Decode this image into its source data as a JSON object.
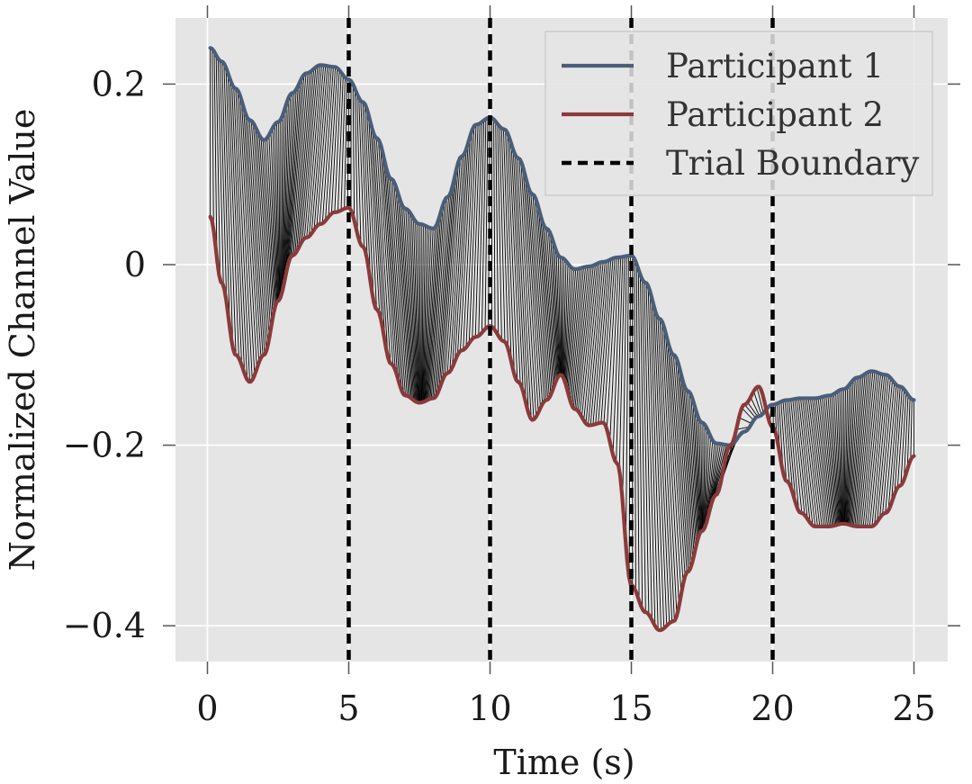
{
  "chart_data": {
    "type": "line",
    "title": "",
    "xlabel": "Time (s)",
    "ylabel": "Normalized Channel Value",
    "xlim": [
      -1.1,
      26.2
    ],
    "ylim": [
      -0.44,
      0.27
    ],
    "xticks": [
      0,
      5,
      10,
      15,
      20,
      25
    ],
    "xtick_labels": [
      "0",
      "5",
      "10",
      "15",
      "20",
      "25"
    ],
    "yticks": [
      -0.4,
      -0.2,
      0,
      0.2
    ],
    "ytick_labels": [
      "−0.4",
      "−0.2",
      "0",
      "0.2"
    ],
    "grid": true,
    "background": "#e5e5e5",
    "legend_position": "top-right",
    "series": [
      {
        "name": "Participant 1",
        "color": "#4a5e78",
        "x": [
          0.1,
          0.5,
          1.0,
          1.5,
          2.0,
          2.5,
          3.0,
          3.5,
          4.0,
          4.5,
          5.0,
          5.5,
          6.0,
          6.5,
          7.0,
          7.5,
          8.0,
          8.5,
          9.0,
          9.5,
          10.0,
          10.5,
          11.0,
          11.5,
          12.0,
          12.5,
          13.0,
          13.5,
          14.0,
          14.5,
          15.0,
          15.5,
          16.0,
          16.5,
          17.0,
          17.5,
          18.0,
          18.5,
          19.0,
          19.5,
          20.0,
          20.5,
          21.0,
          21.5,
          22.0,
          22.5,
          23.0,
          23.5,
          24.0,
          24.5,
          25.0
        ],
        "y": [
          0.24,
          0.225,
          0.195,
          0.16,
          0.138,
          0.158,
          0.19,
          0.212,
          0.221,
          0.219,
          0.205,
          0.18,
          0.14,
          0.095,
          0.062,
          0.045,
          0.04,
          0.075,
          0.12,
          0.155,
          0.163,
          0.15,
          0.118,
          0.078,
          0.04,
          0.008,
          -0.005,
          -0.002,
          0.003,
          0.008,
          0.01,
          -0.02,
          -0.06,
          -0.1,
          -0.14,
          -0.175,
          -0.198,
          -0.2,
          -0.185,
          -0.168,
          -0.155,
          -0.15,
          -0.148,
          -0.148,
          -0.145,
          -0.138,
          -0.125,
          -0.118,
          -0.122,
          -0.135,
          -0.15
        ]
      },
      {
        "name": "Participant 2",
        "color": "#8b3a3a",
        "x": [
          0.1,
          0.5,
          1.0,
          1.5,
          2.0,
          2.5,
          3.0,
          3.5,
          4.0,
          4.5,
          5.0,
          5.5,
          6.0,
          6.5,
          7.0,
          7.5,
          8.0,
          8.5,
          9.0,
          9.5,
          10.0,
          10.5,
          11.0,
          11.5,
          12.0,
          12.5,
          13.0,
          13.5,
          14.0,
          14.5,
          15.0,
          15.5,
          16.0,
          16.5,
          17.0,
          17.5,
          18.0,
          18.5,
          19.0,
          19.5,
          20.0,
          20.5,
          21.0,
          21.5,
          22.0,
          22.5,
          23.0,
          23.5,
          24.0,
          24.5,
          25.0
        ],
        "y": [
          0.053,
          -0.02,
          -0.1,
          -0.13,
          -0.1,
          -0.04,
          0.01,
          0.03,
          0.045,
          0.058,
          0.063,
          0.02,
          -0.05,
          -0.11,
          -0.145,
          -0.153,
          -0.148,
          -0.12,
          -0.095,
          -0.08,
          -0.068,
          -0.085,
          -0.13,
          -0.172,
          -0.15,
          -0.122,
          -0.16,
          -0.178,
          -0.175,
          -0.22,
          -0.355,
          -0.385,
          -0.405,
          -0.395,
          -0.34,
          -0.295,
          -0.255,
          -0.2,
          -0.155,
          -0.135,
          -0.18,
          -0.24,
          -0.275,
          -0.29,
          -0.29,
          -0.287,
          -0.29,
          -0.29,
          -0.275,
          -0.245,
          -0.212
        ]
      }
    ],
    "trial_boundaries": {
      "name": "Trial Boundary",
      "color": "#000000",
      "x": [
        5,
        10,
        15,
        20
      ]
    },
    "alignment_lines": {
      "description": "",
      "color": "#000000"
    }
  }
}
